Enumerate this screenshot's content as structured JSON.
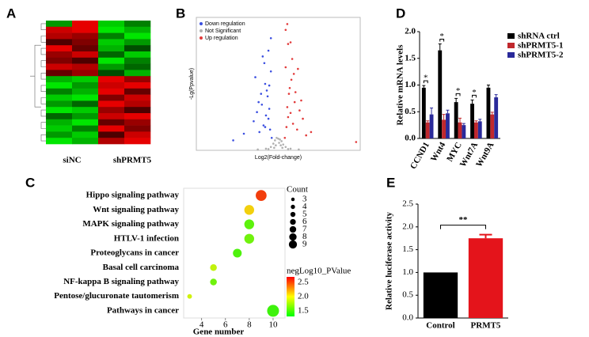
{
  "chart_data": [
    {
      "type": "heatmap",
      "panel": "A",
      "groups": [
        "siNC",
        "shPRMT5"
      ],
      "values": [
        [
          -0.6,
          0.9,
          -0.8,
          -0.5
        ],
        [
          0.8,
          0.9,
          -0.9,
          -0.7
        ],
        [
          0.7,
          0.6,
          -0.5,
          -0.9
        ],
        [
          0.3,
          0.5,
          -0.8,
          -0.6
        ],
        [
          0.9,
          0.4,
          -0.7,
          -0.3
        ],
        [
          0.6,
          0.8,
          -0.4,
          -0.8
        ],
        [
          0.5,
          0.3,
          -0.9,
          -0.5
        ],
        [
          0.8,
          0.7,
          -0.6,
          -0.4
        ],
        [
          0.4,
          0.6,
          -0.3,
          -0.7
        ],
        [
          -0.7,
          -0.8,
          0.9,
          0.6
        ],
        [
          -0.9,
          -0.6,
          0.8,
          0.9
        ],
        [
          -0.5,
          -0.7,
          0.9,
          0.4
        ],
        [
          -0.8,
          -0.9,
          0.5,
          0.8
        ],
        [
          -0.6,
          -0.4,
          0.9,
          0.7
        ],
        [
          -0.9,
          -0.8,
          0.6,
          0.3
        ],
        [
          -0.4,
          -0.6,
          0.8,
          0.9
        ],
        [
          -0.7,
          -0.9,
          0.4,
          0.6
        ],
        [
          -0.8,
          -0.5,
          0.9,
          0.5
        ],
        [
          -0.6,
          -0.8,
          0.3,
          0.8
        ],
        [
          -0.9,
          -0.7,
          0.7,
          0.9
        ]
      ]
    },
    {
      "type": "scatter",
      "panel": "B",
      "x_label": "Log2(Fold-change)",
      "y_label": "-Lg(Ppvalue)",
      "xlim": [
        -10,
        10
      ],
      "ylim": [
        0,
        16
      ],
      "series": [
        {
          "name": "Down regulation",
          "color": "#3b4fe0",
          "x": [
            -0.8,
            -1.0,
            -1.2,
            -1.1,
            -1.5,
            -1.3,
            -1.8,
            -2.0,
            -1.6,
            -2.3,
            -0.9,
            -1.4,
            -2.6,
            -1.7,
            -1.2,
            -3.0,
            -2.1,
            -1.9,
            -0.9,
            -4.2,
            -2.8,
            -1.1,
            -1.6,
            -5.5,
            -2.4
          ],
          "values": [
            1.5,
            2.5,
            3.8,
            5.0,
            4.2,
            6.5,
            3.0,
            5.5,
            8.0,
            2.2,
            9.5,
            7.2,
            4.6,
            10.5,
            12.0,
            3.5,
            6.8,
            11.3,
            13.5,
            2.0,
            8.8,
            7.8,
            2.8,
            1.2,
            5.8
          ]
        },
        {
          "name": "Not Significant",
          "color": "#b0b0b0",
          "x": [
            -0.9,
            -0.6,
            -0.4,
            -0.2,
            0,
            0.2,
            0.4,
            0.6,
            0.9,
            -1.5,
            1.5,
            -2.5,
            2.5,
            -0.5,
            0.5,
            -0.3,
            0.3,
            -1.2,
            1.2,
            0.1
          ],
          "values": [
            0.4,
            0.8,
            1.2,
            1.5,
            1.4,
            1.3,
            1.1,
            0.7,
            0.4,
            0.2,
            0.2,
            0.1,
            0.1,
            0.3,
            0.3,
            0.6,
            0.6,
            0.15,
            0.15,
            0.9
          ]
        },
        {
          "name": "Up regulation",
          "color": "#e23a3a",
          "x": [
            0.8,
            1.0,
            1.2,
            1.1,
            1.5,
            1.3,
            1.8,
            2.0,
            1.6,
            2.3,
            0.9,
            1.4,
            2.6,
            1.7,
            1.2,
            3.0,
            2.1,
            1.9,
            0.9,
            4.0,
            2.8,
            1.1,
            3.4,
            9.5,
            2.4,
            1.5
          ],
          "values": [
            1.5,
            2.8,
            4.0,
            5.2,
            4.5,
            6.8,
            3.2,
            5.8,
            8.5,
            2.5,
            10.0,
            7.5,
            4.8,
            11.0,
            12.8,
            3.8,
            7.0,
            9.2,
            14.5,
            2.2,
            6.0,
            15.2,
            1.8,
            1.0,
            9.8,
            13.0
          ]
        }
      ]
    },
    {
      "type": "grouped_bar",
      "panel": "D",
      "y_label": "Relative mRNA levels",
      "categories": [
        "CCND1",
        "Wnt4",
        "MYC",
        "Wnt7A",
        "Wnt9A"
      ],
      "ylim": [
        0,
        2
      ],
      "yticks": [
        {
          "value": 0,
          "label": "0.0"
        },
        0.5,
        {
          "value": 1,
          "label": "1.0"
        },
        1.5,
        {
          "value": 2,
          "label": "2.0"
        }
      ],
      "significance": [
        "*",
        "*",
        "*",
        "*",
        null
      ],
      "series": [
        {
          "name": "shRNA ctrl",
          "color": "#000000",
          "values": [
            0.95,
            1.65,
            0.68,
            0.65,
            0.95
          ],
          "errors": [
            0.04,
            0.12,
            0.07,
            0.07,
            0.05
          ]
        },
        {
          "name": "shPRMT5-1",
          "color": "#c0282d",
          "values": [
            0.3,
            0.35,
            0.3,
            0.3,
            0.45
          ],
          "errors": [
            0.03,
            0.1,
            0.08,
            0.03,
            0.04
          ]
        },
        {
          "name": "shPRMT5-2",
          "color": "#2a2a9a",
          "values": [
            0.45,
            0.47,
            0.25,
            0.32,
            0.77
          ],
          "errors": [
            0.12,
            0.06,
            0.03,
            0.04,
            0.05
          ]
        }
      ]
    },
    {
      "type": "dot",
      "panel": "C",
      "x_label": "Gene number",
      "categories": [
        "Hippo signaling pathway",
        "Wnt signaling pathway",
        "MAPK signaling pathway",
        "HTLV-1 infection",
        "Proteoglycans in cancer",
        "Basal cell  carcinoma",
        "NF-kappa B signaling pathway",
        "Pentose/glucuronate tautomerism",
        "Pathways in cancer"
      ],
      "values": [
        9,
        8,
        8,
        8,
        7,
        5,
        5,
        3,
        10
      ],
      "sizes": [
        9,
        8,
        8,
        8,
        7,
        5,
        5,
        3,
        10
      ],
      "pvalues": [
        2.55,
        2.1,
        1.55,
        1.6,
        1.5,
        1.85,
        1.6,
        1.9,
        1.45
      ],
      "xlim": [
        2.5,
        11
      ],
      "xticks": [
        4,
        6,
        8,
        10
      ],
      "size_title": "Count",
      "size_ticks": [
        3,
        4,
        5,
        6,
        7,
        8,
        9
      ],
      "color_title": "negLog10_PValue",
      "clim": [
        1.3,
        2.7
      ],
      "cticks": [
        2.5,
        {
          "value": 2,
          "label": "2.0"
        },
        1.5
      ]
    },
    {
      "type": "bar",
      "panel": "E",
      "y_label": "Relative luciferase activity",
      "categories": [
        "Control",
        "PRMT5"
      ],
      "values": [
        1,
        1.75
      ],
      "errors": [
        0,
        0.08
      ],
      "colors": [
        "#000000",
        "#e4141b"
      ],
      "ylim": [
        0,
        2.5
      ],
      "yticks": [
        {
          "value": 0,
          "label": "0.0"
        },
        0.5,
        {
          "value": 1,
          "label": "1.0"
        },
        1.5,
        {
          "value": 2,
          "label": "2.0"
        },
        2.5
      ],
      "significance": "**"
    }
  ]
}
